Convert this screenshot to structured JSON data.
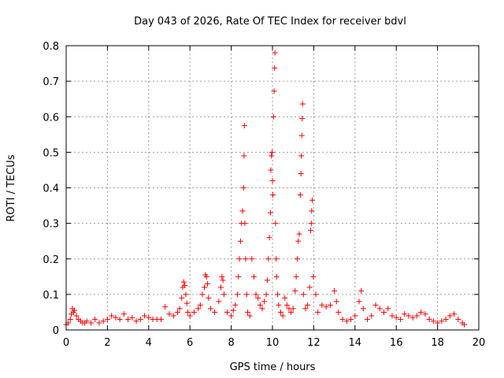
{
  "chart_data": {
    "type": "scatter",
    "title": "Day 043 of 2026, Rate Of TEC Index for receiver bdvl",
    "xlabel": "GPS time / hours",
    "ylabel": "ROTI / TECUs",
    "xlim": [
      0,
      20
    ],
    "ylim": [
      0,
      0.8
    ],
    "xticks": [
      0,
      2,
      4,
      6,
      8,
      10,
      12,
      14,
      16,
      18,
      20
    ],
    "yticks": [
      0,
      0.1,
      0.2,
      0.3,
      0.4,
      0.5,
      0.6,
      0.7,
      0.8
    ],
    "xtick_labels": [
      "0",
      "2",
      "4",
      "6",
      "8",
      "10",
      "12",
      "14",
      "16",
      "18",
      "20"
    ],
    "ytick_labels": [
      "0",
      "0.1",
      "0.2",
      "0.3",
      "0.4",
      "0.5",
      "0.6",
      "0.7",
      "0.8"
    ],
    "grid": true,
    "marker": "plus",
    "color": "#ff0000",
    "series": [
      {
        "name": "ROTI",
        "points": [
          [
            0.0,
            0.015
          ],
          [
            0.1,
            0.02
          ],
          [
            0.2,
            0.03
          ],
          [
            0.25,
            0.045
          ],
          [
            0.3,
            0.06
          ],
          [
            0.35,
            0.05
          ],
          [
            0.4,
            0.055
          ],
          [
            0.5,
            0.04
          ],
          [
            0.6,
            0.03
          ],
          [
            0.7,
            0.025
          ],
          [
            0.8,
            0.02
          ],
          [
            0.9,
            0.02
          ],
          [
            1.0,
            0.025
          ],
          [
            1.2,
            0.02
          ],
          [
            1.4,
            0.03
          ],
          [
            1.6,
            0.02
          ],
          [
            1.8,
            0.025
          ],
          [
            2.0,
            0.03
          ],
          [
            2.2,
            0.04
          ],
          [
            2.4,
            0.035
          ],
          [
            2.6,
            0.03
          ],
          [
            2.8,
            0.045
          ],
          [
            3.0,
            0.03
          ],
          [
            3.2,
            0.035
          ],
          [
            3.4,
            0.025
          ],
          [
            3.6,
            0.03
          ],
          [
            3.8,
            0.04
          ],
          [
            4.0,
            0.035
          ],
          [
            4.2,
            0.03
          ],
          [
            4.4,
            0.03
          ],
          [
            4.6,
            0.03
          ],
          [
            4.8,
            0.065
          ],
          [
            5.0,
            0.045
          ],
          [
            5.2,
            0.04
          ],
          [
            5.4,
            0.05
          ],
          [
            5.5,
            0.06
          ],
          [
            5.6,
            0.09
          ],
          [
            5.65,
            0.12
          ],
          [
            5.7,
            0.135
          ],
          [
            5.75,
            0.125
          ],
          [
            5.8,
            0.1
          ],
          [
            5.85,
            0.075
          ],
          [
            5.9,
            0.05
          ],
          [
            6.0,
            0.04
          ],
          [
            6.2,
            0.05
          ],
          [
            6.4,
            0.06
          ],
          [
            6.5,
            0.07
          ],
          [
            6.6,
            0.1
          ],
          [
            6.7,
            0.12
          ],
          [
            6.75,
            0.155
          ],
          [
            6.8,
            0.15
          ],
          [
            6.85,
            0.13
          ],
          [
            6.9,
            0.09
          ],
          [
            7.0,
            0.06
          ],
          [
            7.2,
            0.05
          ],
          [
            7.4,
            0.08
          ],
          [
            7.5,
            0.12
          ],
          [
            7.55,
            0.15
          ],
          [
            7.6,
            0.14
          ],
          [
            7.65,
            0.1
          ],
          [
            7.8,
            0.05
          ],
          [
            8.0,
            0.04
          ],
          [
            8.1,
            0.055
          ],
          [
            8.2,
            0.07
          ],
          [
            8.3,
            0.1
          ],
          [
            8.35,
            0.15
          ],
          [
            8.4,
            0.2
          ],
          [
            8.45,
            0.25
          ],
          [
            8.5,
            0.3
          ],
          [
            8.55,
            0.335
          ],
          [
            8.6,
            0.4
          ],
          [
            8.62,
            0.49
          ],
          [
            8.64,
            0.575
          ],
          [
            8.66,
            0.3
          ],
          [
            8.7,
            0.2
          ],
          [
            8.75,
            0.1
          ],
          [
            8.8,
            0.05
          ],
          [
            8.9,
            0.04
          ],
          [
            9.0,
            0.2
          ],
          [
            9.1,
            0.15
          ],
          [
            9.2,
            0.1
          ],
          [
            9.3,
            0.09
          ],
          [
            9.4,
            0.07
          ],
          [
            9.5,
            0.06
          ],
          [
            9.6,
            0.08
          ],
          [
            9.7,
            0.1
          ],
          [
            9.75,
            0.14
          ],
          [
            9.8,
            0.2
          ],
          [
            9.85,
            0.26
          ],
          [
            9.9,
            0.33
          ],
          [
            9.92,
            0.45
          ],
          [
            9.95,
            0.49
          ],
          [
            9.98,
            0.5
          ],
          [
            10.0,
            0.42
          ],
          [
            10.02,
            0.38
          ],
          [
            10.05,
            0.6
          ],
          [
            10.08,
            0.672
          ],
          [
            10.1,
            0.737
          ],
          [
            10.12,
            0.78
          ],
          [
            10.15,
            0.3
          ],
          [
            10.18,
            0.2
          ],
          [
            10.2,
            0.15
          ],
          [
            10.25,
            0.1
          ],
          [
            10.3,
            0.07
          ],
          [
            10.4,
            0.05
          ],
          [
            10.5,
            0.04
          ],
          [
            10.6,
            0.09
          ],
          [
            10.7,
            0.07
          ],
          [
            10.8,
            0.06
          ],
          [
            10.9,
            0.05
          ],
          [
            11.0,
            0.06
          ],
          [
            11.1,
            0.11
          ],
          [
            11.15,
            0.15
          ],
          [
            11.2,
            0.2
          ],
          [
            11.25,
            0.25
          ],
          [
            11.3,
            0.27
          ],
          [
            11.35,
            0.38
          ],
          [
            11.38,
            0.44
          ],
          [
            11.4,
            0.49
          ],
          [
            11.42,
            0.547
          ],
          [
            11.44,
            0.595
          ],
          [
            11.46,
            0.636
          ],
          [
            11.5,
            0.1
          ],
          [
            11.6,
            0.06
          ],
          [
            11.7,
            0.07
          ],
          [
            11.8,
            0.12
          ],
          [
            11.85,
            0.28
          ],
          [
            11.88,
            0.3
          ],
          [
            11.9,
            0.335
          ],
          [
            11.93,
            0.365
          ],
          [
            11.98,
            0.15
          ],
          [
            12.1,
            0.1
          ],
          [
            12.2,
            0.05
          ],
          [
            12.4,
            0.07
          ],
          [
            12.6,
            0.065
          ],
          [
            12.8,
            0.07
          ],
          [
            13.0,
            0.11
          ],
          [
            13.1,
            0.08
          ],
          [
            13.2,
            0.05
          ],
          [
            13.4,
            0.03
          ],
          [
            13.6,
            0.025
          ],
          [
            13.8,
            0.03
          ],
          [
            14.0,
            0.04
          ],
          [
            14.2,
            0.08
          ],
          [
            14.3,
            0.11
          ],
          [
            14.4,
            0.06
          ],
          [
            14.6,
            0.03
          ],
          [
            14.8,
            0.04
          ],
          [
            15.0,
            0.07
          ],
          [
            15.2,
            0.06
          ],
          [
            15.4,
            0.05
          ],
          [
            15.6,
            0.06
          ],
          [
            15.8,
            0.04
          ],
          [
            16.0,
            0.035
          ],
          [
            16.2,
            0.03
          ],
          [
            16.4,
            0.045
          ],
          [
            16.6,
            0.04
          ],
          [
            16.8,
            0.035
          ],
          [
            17.0,
            0.04
          ],
          [
            17.2,
            0.05
          ],
          [
            17.4,
            0.045
          ],
          [
            17.6,
            0.03
          ],
          [
            17.8,
            0.025
          ],
          [
            18.0,
            0.02
          ],
          [
            18.2,
            0.025
          ],
          [
            18.4,
            0.03
          ],
          [
            18.6,
            0.04
          ],
          [
            18.8,
            0.045
          ],
          [
            19.0,
            0.03
          ],
          [
            19.2,
            0.02
          ],
          [
            19.3,
            0.015
          ]
        ]
      }
    ]
  }
}
